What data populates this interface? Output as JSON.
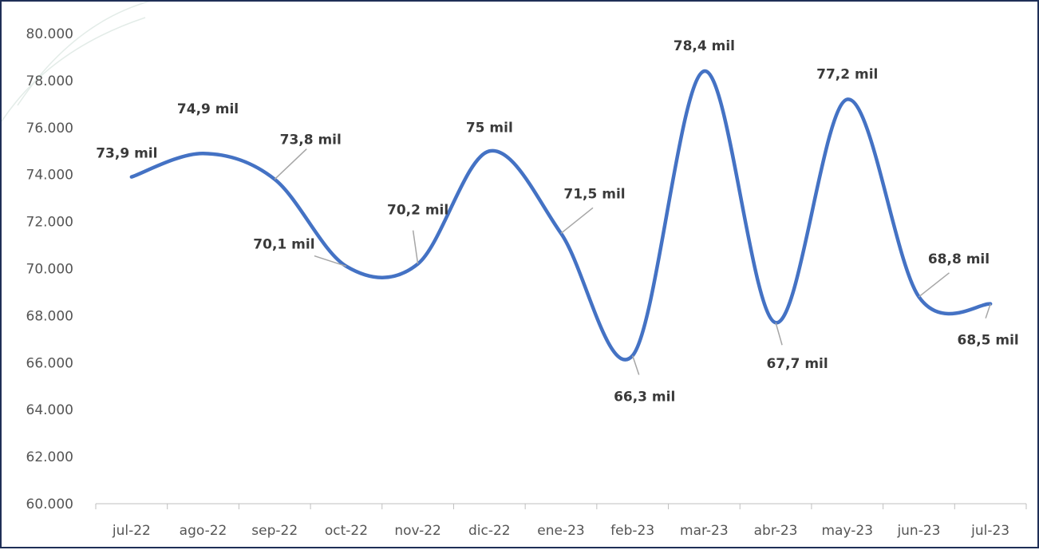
{
  "chart_data": {
    "type": "line",
    "title": "",
    "xlabel": "",
    "ylabel": "",
    "categories": [
      "jul-22",
      "ago-22",
      "sep-22",
      "oct-22",
      "nov-22",
      "dic-22",
      "ene-23",
      "feb-23",
      "mar-23",
      "abr-23",
      "may-23",
      "jun-23",
      "jul-23"
    ],
    "values": [
      73900,
      74900,
      73800,
      70100,
      70200,
      75000,
      71500,
      66300,
      78400,
      67700,
      77200,
      68800,
      68500
    ],
    "data_labels": [
      "73,9 mil",
      "74,9 mil",
      "73,8 mil",
      "70,1 mil",
      "70,2 mil",
      "75 mil",
      "71,5 mil",
      "66,3 mil",
      "78,4 mil",
      "67,7 mil",
      "77,2 mil",
      "68,8 mil",
      "68,5 mil"
    ],
    "ylim": [
      60000,
      80000
    ],
    "yticks": [
      "60.000",
      "62.000",
      "64.000",
      "66.000",
      "68.000",
      "70.000",
      "72.000",
      "74.000",
      "76.000",
      "78.000",
      "80.000"
    ],
    "grid": false,
    "smooth": true,
    "legend": "none",
    "colors": {
      "line": "#4472c4",
      "leader": "#a6a6a6",
      "axis": "#bfbfbf",
      "frame": "#1f2f57"
    }
  }
}
